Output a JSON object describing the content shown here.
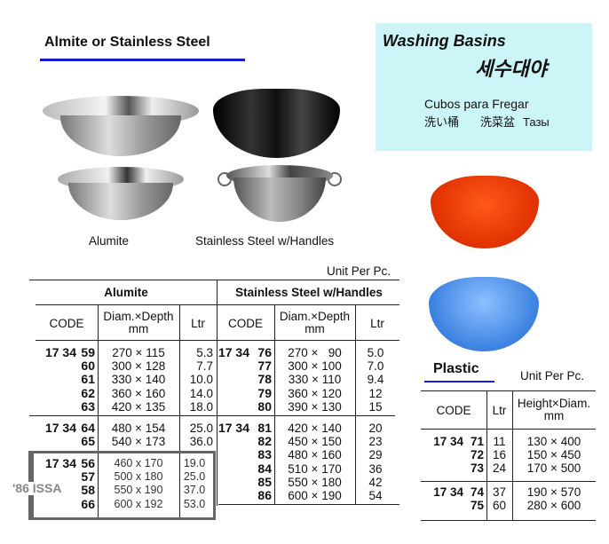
{
  "section_left": {
    "title": "Almite or Stainless Steel",
    "images": [
      {
        "label": "Alumite"
      },
      {
        "label": "Stainless Steel w/Handles"
      }
    ]
  },
  "title_box": {
    "title": "Washing Basins",
    "korean": "세수대야",
    "spanish": "Cubos para Fregar",
    "japanese": "洗い桶",
    "chinese": "洗菜盆",
    "russian": "Тазы",
    "bg": "#ccf5f8"
  },
  "unit_label": "Unit Per Pc.",
  "accent": "#1a1acc",
  "alumite": {
    "title": "Alumite",
    "headers": {
      "code": "CODE",
      "dim": "Diam.×Depth",
      "dim_unit": "mm",
      "ltr": "Ltr"
    },
    "groups": [
      {
        "prefix": "17 34",
        "rows": [
          [
            "59",
            "270 × 115",
            "5.3"
          ],
          [
            "60",
            "300 × 128",
            "7.7"
          ],
          [
            "61",
            "330 × 140",
            "10.0"
          ],
          [
            "62",
            "360 × 160",
            "14.0"
          ],
          [
            "63",
            "420 × 135",
            "18.0"
          ]
        ]
      },
      {
        "prefix": "17 34",
        "rows": [
          [
            "64",
            "480 × 154",
            "25.0"
          ],
          [
            "65",
            "540 × 173",
            "36.0"
          ]
        ]
      },
      {
        "prefix": "17 34",
        "note": "'86 ISSA",
        "rows": [
          [
            "56",
            "460 x 170",
            "19.0"
          ],
          [
            "57",
            "500 x 180",
            "25.0"
          ],
          [
            "58",
            "550 x 190",
            "37.0"
          ],
          [
            "66",
            "600 x 192",
            "53.0"
          ]
        ]
      }
    ]
  },
  "stainless": {
    "title": "Stainless Steel w/Handles",
    "headers": {
      "code": "CODE",
      "dim": "Diam.×Depth",
      "dim_unit": "mm",
      "ltr": "Ltr"
    },
    "groups": [
      {
        "prefix": "17 34",
        "rows": [
          [
            "76",
            "270 ×   90",
            "5.0"
          ],
          [
            "77",
            "300 × 100",
            "7.0"
          ],
          [
            "78",
            "330 × 110",
            "9.4"
          ],
          [
            "79",
            "360 × 120",
            "12"
          ],
          [
            "80",
            "390 × 130",
            "15"
          ]
        ]
      },
      {
        "prefix": "17 34",
        "rows": [
          [
            "81",
            "420 × 140",
            "20"
          ],
          [
            "82",
            "450 × 150",
            "23"
          ],
          [
            "83",
            "480 × 160",
            "29"
          ],
          [
            "84",
            "510 × 170",
            "36"
          ],
          [
            "85",
            "550 × 180",
            "42"
          ],
          [
            "86",
            "600 × 190",
            "54"
          ]
        ]
      }
    ]
  },
  "plastic": {
    "title": "Plastic",
    "headers": {
      "code": "CODE",
      "ltr": "Ltr",
      "dim": "Height×Diam.",
      "dim_unit": "mm"
    },
    "groups": [
      {
        "prefix": "17 34",
        "rows": [
          [
            "71",
            "11",
            "130 × 400"
          ],
          [
            "72",
            "16",
            "150 × 450"
          ],
          [
            "73",
            "24",
            "170 × 500"
          ]
        ]
      },
      {
        "prefix": "17 34",
        "rows": [
          [
            "74",
            "37",
            "190 × 570"
          ],
          [
            "75",
            "60",
            "280 × 600"
          ]
        ]
      }
    ]
  }
}
